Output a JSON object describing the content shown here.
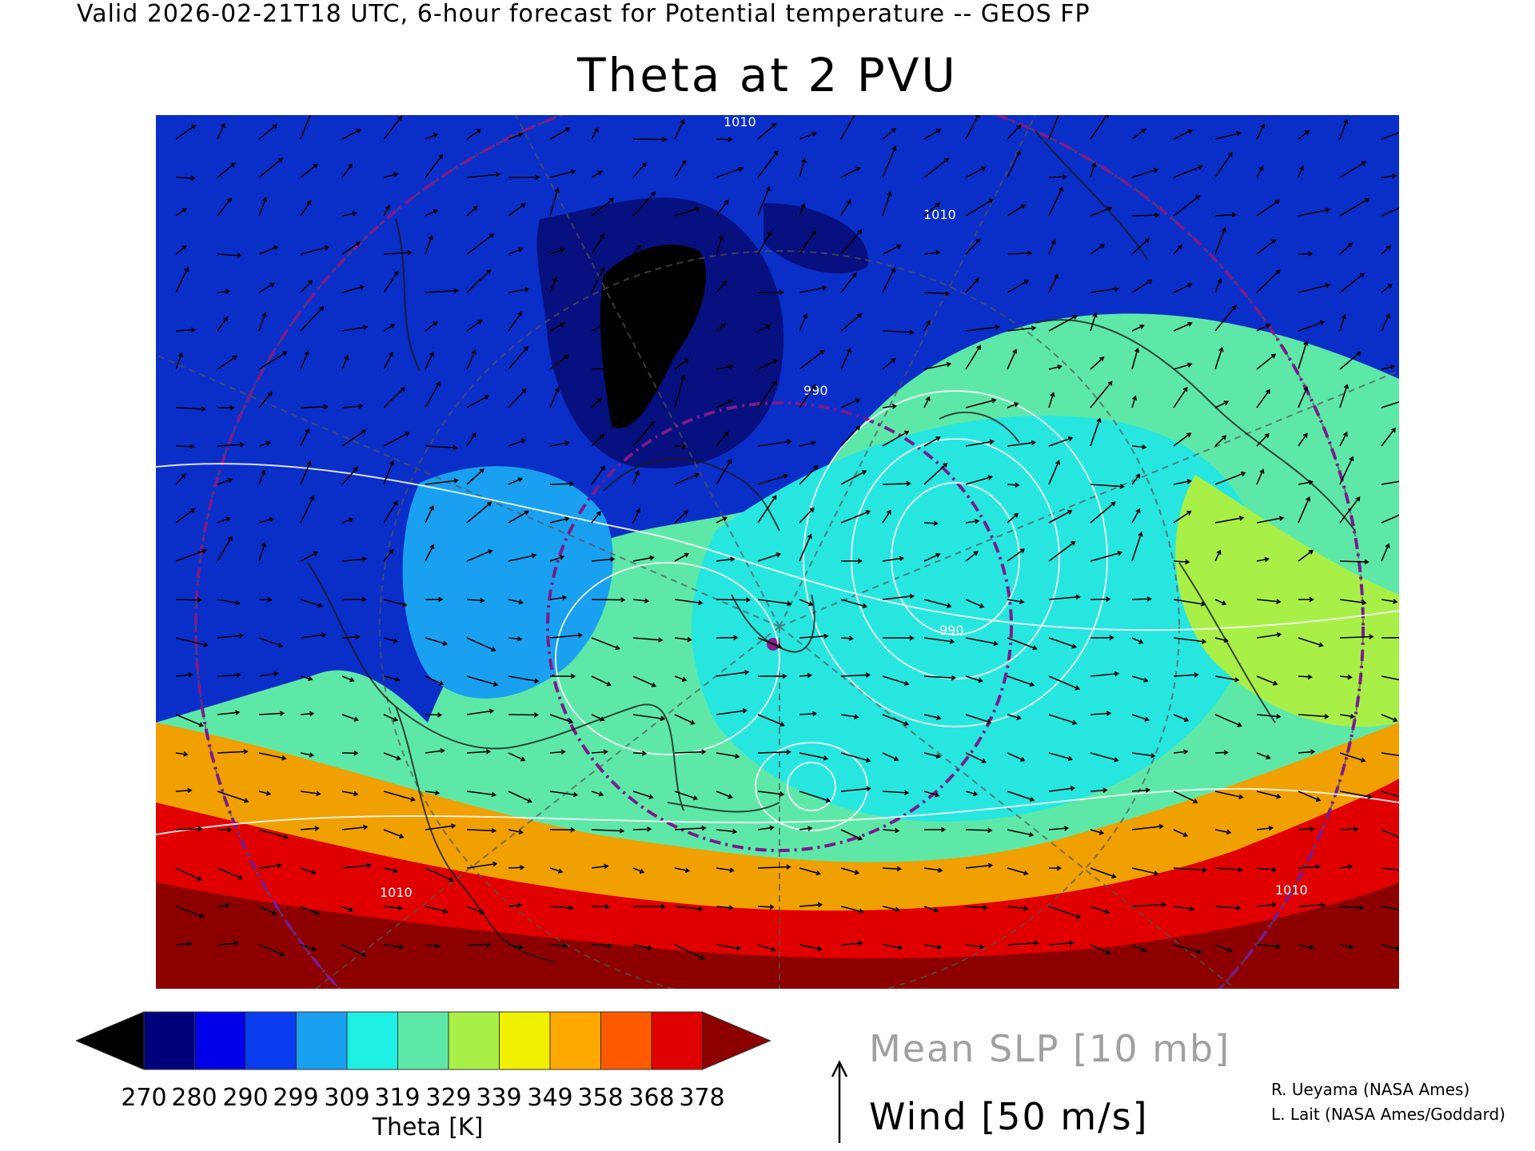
{
  "header": {
    "valid_line": "Valid 2026-02-21T18 UTC, 6-hour forecast for Potential temperature -- GEOS FP"
  },
  "title": "Theta at 2 PVU",
  "map": {
    "field": "Theta",
    "background_color": "#5ee8a8",
    "features": [
      {
        "name": "polar-cold-pool",
        "level": 0,
        "color": "#0a2ec8"
      },
      {
        "name": "cold-trough-core",
        "level": 1,
        "color": "#07107f"
      },
      {
        "name": "coldest-pocket",
        "level": 2,
        "color": "#000000"
      },
      {
        "name": "atlantic-low-region",
        "level": 3,
        "color": "#27e6e0"
      },
      {
        "name": "canada-trough",
        "level": 4,
        "color": "#1aa0f0"
      },
      {
        "name": "warm-band-south",
        "level": 5,
        "color": "#f0a000"
      },
      {
        "name": "hot-band-south",
        "level": 6,
        "color": "#e00000"
      },
      {
        "name": "hottest-band",
        "level": 7,
        "color": "#8c0000"
      },
      {
        "name": "europe-warm-region",
        "level": 8,
        "color": "#a8f048"
      }
    ],
    "slp_contour_labels": [
      "1010",
      "1010",
      "990",
      "990",
      "1010",
      "1010"
    ]
  },
  "colorbar": {
    "colors": [
      "#000000",
      "#00007a",
      "#0000e8",
      "#0a3cf0",
      "#1aa0f0",
      "#1ff0e6",
      "#5ee8a8",
      "#a8f048",
      "#f0f000",
      "#ffa800",
      "#ff5a00",
      "#e00000",
      "#8c0000"
    ],
    "labels": [
      "270",
      "280",
      "290",
      "299",
      "309",
      "319",
      "329",
      "339",
      "349",
      "358",
      "368",
      "378"
    ],
    "title": "Theta [K]"
  },
  "legend": {
    "slp": "Mean SLP [10 mb]",
    "wind": "Wind [50 m/s]"
  },
  "credits": [
    "R. Ueyama (NASA Ames)",
    "L. Lait (NASA Ames/Goddard)"
  ]
}
